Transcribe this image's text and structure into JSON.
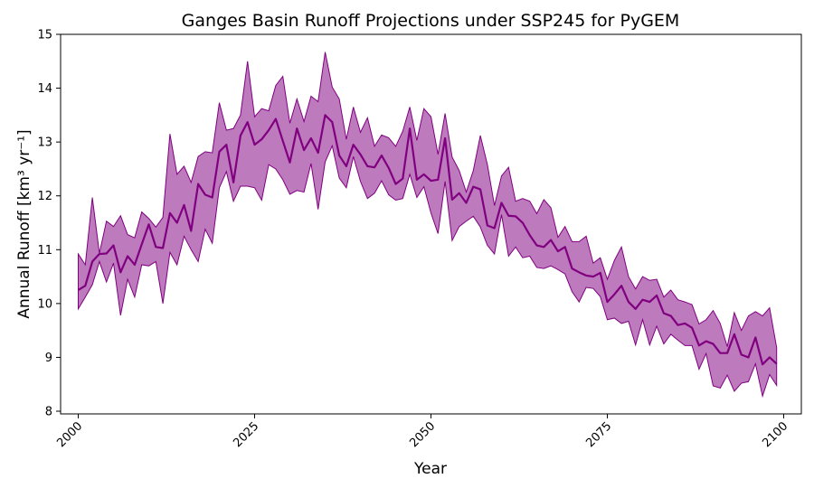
{
  "chart_data": {
    "type": "line",
    "title": "Ganges Basin Runoff Projections under SSP245 for PyGEM",
    "xlabel": "Year",
    "ylabel": "Annual Runoff [km³ yr⁻¹]",
    "xlim": [
      1997.5,
      2102.5
    ],
    "ylim": [
      7.95,
      15
    ],
    "xticks": [
      2000,
      2025,
      2050,
      2075,
      2100
    ],
    "yticks": [
      8,
      9,
      10,
      11,
      12,
      13,
      14,
      15
    ],
    "grid": false,
    "colors": {
      "line": "#800080",
      "band": "#800080"
    },
    "x": [
      2000,
      2001,
      2002,
      2003,
      2004,
      2005,
      2006,
      2007,
      2008,
      2009,
      2010,
      2011,
      2012,
      2013,
      2014,
      2015,
      2016,
      2017,
      2018,
      2019,
      2020,
      2021,
      2022,
      2023,
      2024,
      2025,
      2026,
      2027,
      2028,
      2029,
      2030,
      2031,
      2032,
      2033,
      2034,
      2035,
      2036,
      2037,
      2038,
      2039,
      2040,
      2041,
      2042,
      2043,
      2044,
      2045,
      2046,
      2047,
      2048,
      2049,
      2050,
      2051,
      2052,
      2053,
      2054,
      2055,
      2056,
      2057,
      2058,
      2059,
      2060,
      2061,
      2062,
      2063,
      2064,
      2065,
      2066,
      2067,
      2068,
      2069,
      2070,
      2071,
      2072,
      2073,
      2074,
      2075,
      2076,
      2077,
      2078,
      2079,
      2080,
      2081,
      2082,
      2083,
      2084,
      2085,
      2086,
      2087,
      2088,
      2089,
      2090,
      2091,
      2092,
      2093,
      2094,
      2095,
      2096,
      2097,
      2098,
      2099
    ],
    "series": [
      {
        "role": "median",
        "values": [
          10.25,
          10.33,
          10.78,
          10.92,
          10.93,
          11.08,
          10.58,
          10.88,
          10.72,
          11.1,
          11.47,
          11.05,
          11.03,
          11.68,
          11.5,
          11.83,
          11.35,
          12.22,
          12.02,
          11.97,
          12.82,
          12.95,
          12.25,
          13.12,
          13.37,
          12.95,
          13.05,
          13.22,
          13.43,
          13.02,
          12.62,
          13.25,
          12.85,
          13.07,
          12.8,
          13.5,
          13.37,
          12.75,
          12.55,
          12.95,
          12.77,
          12.55,
          12.53,
          12.75,
          12.52,
          12.22,
          12.32,
          13.25,
          12.3,
          12.4,
          12.28,
          12.3,
          13.07,
          11.93,
          12.05,
          11.87,
          12.17,
          12.12,
          11.45,
          11.4,
          11.87,
          11.63,
          11.62,
          11.5,
          11.27,
          11.08,
          11.05,
          11.18,
          10.97,
          11.05,
          10.65,
          10.58,
          10.52,
          10.5,
          10.57,
          10.03,
          10.17,
          10.33,
          10.03,
          9.9,
          10.07,
          10.03,
          10.15,
          9.82,
          9.77,
          9.6,
          9.63,
          9.55,
          9.22,
          9.3,
          9.25,
          9.08,
          9.08,
          9.43,
          9.05,
          9.0,
          9.37,
          8.87,
          9.0,
          8.88
        ]
      },
      {
        "role": "upper",
        "values": [
          10.92,
          10.72,
          11.97,
          10.93,
          11.53,
          11.43,
          11.63,
          11.28,
          11.22,
          11.7,
          11.58,
          11.42,
          11.6,
          13.15,
          12.4,
          12.55,
          12.25,
          12.73,
          12.82,
          12.8,
          13.73,
          13.22,
          13.25,
          13.5,
          14.5,
          13.47,
          13.62,
          13.58,
          14.05,
          14.22,
          13.35,
          13.8,
          13.38,
          13.85,
          13.75,
          14.67,
          14.02,
          13.8,
          13.05,
          13.65,
          13.18,
          13.45,
          12.92,
          13.13,
          13.08,
          12.92,
          13.2,
          13.65,
          13.03,
          13.62,
          13.47,
          12.77,
          13.53,
          12.72,
          12.47,
          12.07,
          12.47,
          13.12,
          12.58,
          11.82,
          12.37,
          12.53,
          11.9,
          11.95,
          11.9,
          11.67,
          11.93,
          11.78,
          11.23,
          11.43,
          11.15,
          11.15,
          11.25,
          10.75,
          10.85,
          10.45,
          10.8,
          11.05,
          10.5,
          10.27,
          10.5,
          10.43,
          10.45,
          10.12,
          10.25,
          10.07,
          10.03,
          9.98,
          9.62,
          9.7,
          9.87,
          9.63,
          9.2,
          9.83,
          9.5,
          9.77,
          9.85,
          9.77,
          9.92,
          9.18
        ]
      },
      {
        "role": "lower",
        "values": [
          9.9,
          10.12,
          10.35,
          10.78,
          10.4,
          10.75,
          9.78,
          10.45,
          10.12,
          10.72,
          10.7,
          10.78,
          10.0,
          10.95,
          10.72,
          11.25,
          11.0,
          10.78,
          11.38,
          11.12,
          12.15,
          12.45,
          11.9,
          12.18,
          12.18,
          12.15,
          11.92,
          12.58,
          12.5,
          12.3,
          12.03,
          12.1,
          12.07,
          12.6,
          11.75,
          12.63,
          12.93,
          12.33,
          12.15,
          12.73,
          12.27,
          11.95,
          12.05,
          12.28,
          12.02,
          11.92,
          11.95,
          12.4,
          11.97,
          12.17,
          11.68,
          11.3,
          12.27,
          11.17,
          11.43,
          11.53,
          11.62,
          11.42,
          11.08,
          10.92,
          11.65,
          10.88,
          11.05,
          10.85,
          10.88,
          10.67,
          10.65,
          10.7,
          10.63,
          10.55,
          10.22,
          10.03,
          10.3,
          10.28,
          10.13,
          9.7,
          9.73,
          9.63,
          9.67,
          9.23,
          9.7,
          9.23,
          9.58,
          9.25,
          9.43,
          9.32,
          9.22,
          9.22,
          8.78,
          9.07,
          8.47,
          8.43,
          8.67,
          8.37,
          8.52,
          8.55,
          8.88,
          8.28,
          8.68,
          8.48
        ]
      }
    ]
  }
}
